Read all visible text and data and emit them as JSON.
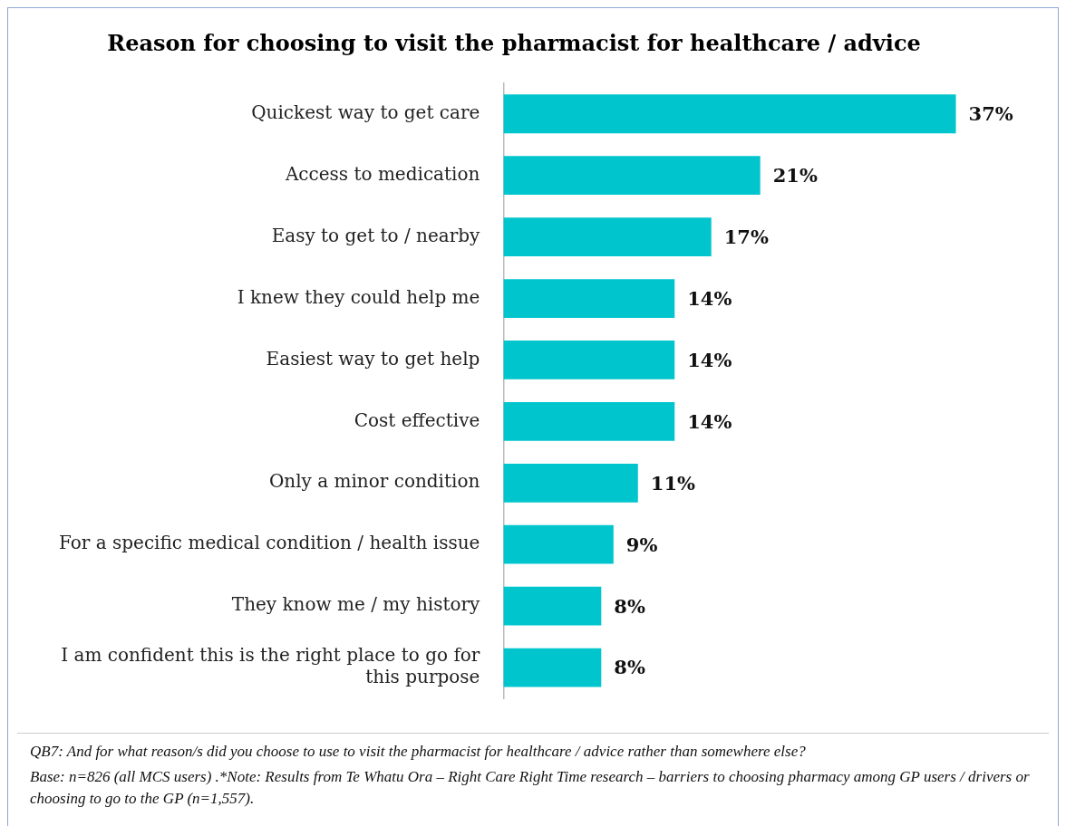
{
  "chart_data": {
    "type": "bar",
    "orientation": "horizontal",
    "title": "Reason for choosing to visit the pharmacist for healthcare / advice",
    "categories": [
      "Quickest way to get care",
      "Access to medication",
      "Easy to get to / nearby",
      "I knew they could help me",
      "Easiest way to get help",
      "Cost effective",
      "Only a minor condition",
      "For a specific medical condition / health issue",
      "They know me / my history",
      "I am confident this is the right place to go for this purpose"
    ],
    "values": [
      37,
      21,
      17,
      14,
      14,
      14,
      11,
      9,
      8,
      8
    ],
    "value_labels": [
      "37%",
      "21%",
      "17%",
      "14%",
      "14%",
      "14%",
      "11%",
      "9%",
      "8%",
      "8%"
    ],
    "color": "#00c5cd",
    "legend": false,
    "annotations": [
      "QB7: And for what reason/s did you choose to use to visit the pharmacist for healthcare / advice rather than somewhere else?",
      "Base: n=826 (all MCS users) .*Note: Results from Te Whatu Ora – Right Care Right Time research – barriers to choosing pharmacy among GP users / drivers or choosing to go to the GP (n=1,557)."
    ]
  }
}
